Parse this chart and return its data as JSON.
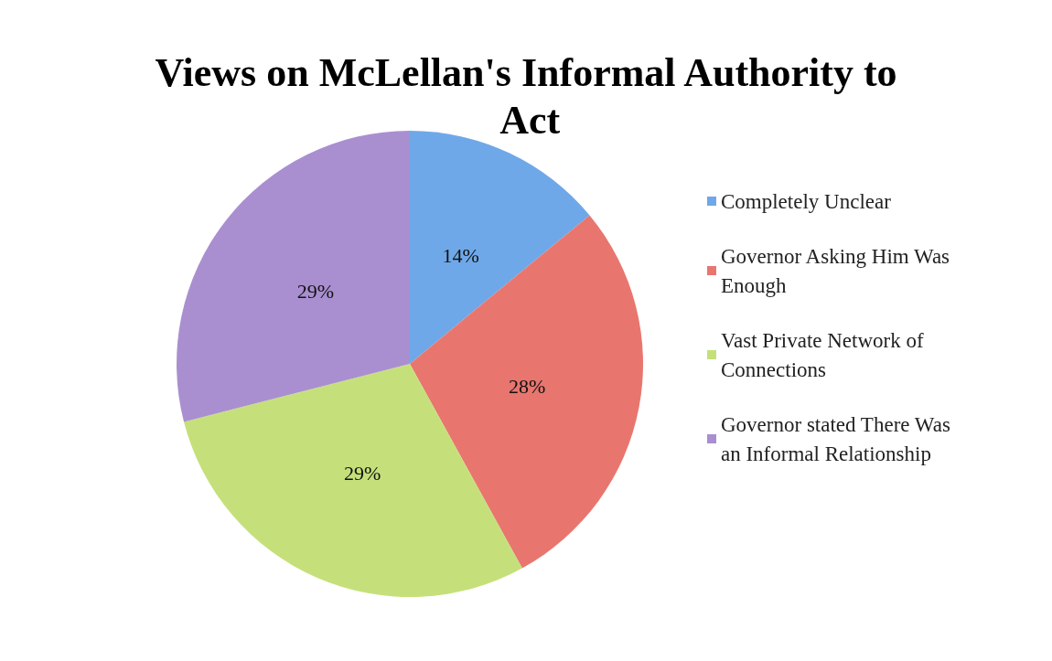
{
  "chart_data": {
    "type": "pie",
    "title": "Views on McLellan's Informal Authority to Act",
    "categories": [
      "Completely Unclear",
      "Governor Asking Him Was Enough",
      "Vast Private Network of Connections",
      "Governor stated There Was an Informal Relationship"
    ],
    "values": [
      14,
      28,
      29,
      29
    ],
    "colors": [
      "#6fa8e8",
      "#e8766e",
      "#c5e07a",
      "#a98fd0"
    ],
    "value_labels": [
      "14%",
      "28%",
      "29%",
      "29%"
    ],
    "legend": "right"
  }
}
